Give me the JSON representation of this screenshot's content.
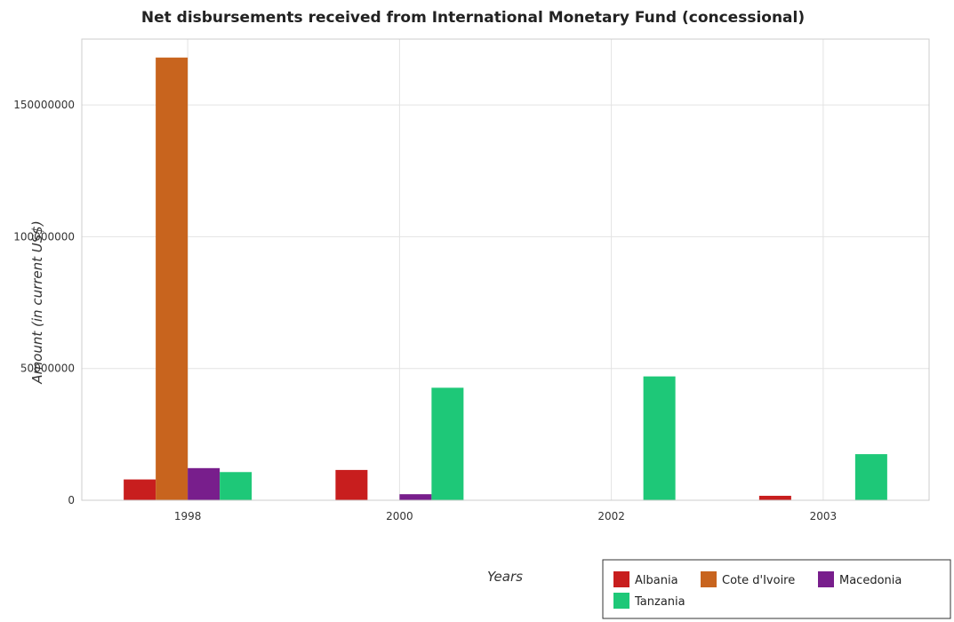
{
  "chart_data": {
    "type": "bar",
    "title": "Net disbursements received from International Monetary Fund (concessional)",
    "xlabel": "Years",
    "ylabel": "Amount (in current US$)",
    "categories": [
      "1998",
      "2000",
      "2002",
      "2003"
    ],
    "series": [
      {
        "name": "Albania",
        "color": "#c81e1e",
        "values": [
          7900000,
          11500000,
          0,
          1700000
        ]
      },
      {
        "name": "Cote d'Ivoire",
        "color": "#c8641e",
        "values": [
          168000000,
          0,
          0,
          0
        ]
      },
      {
        "name": "Macedonia",
        "color": "#781e8c",
        "values": [
          12200000,
          2300000,
          0,
          0
        ]
      },
      {
        "name": "Tanzania",
        "color": "#1ec878",
        "values": [
          10700000,
          42700000,
          47000000,
          17500000
        ]
      }
    ],
    "ylim": [
      0,
      175000000
    ],
    "yticks": [
      0,
      50000000,
      100000000,
      150000000
    ],
    "ytick_labels": [
      "0",
      "50000000",
      "100000000",
      "150000000"
    ],
    "grid": true,
    "legend_position": "bottom-right"
  }
}
